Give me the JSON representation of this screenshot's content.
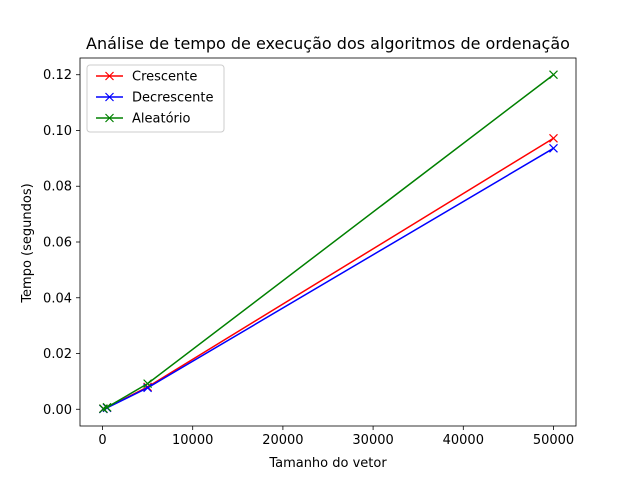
{
  "chart_data": {
    "type": "line",
    "title": "Análise de tempo de execução dos algoritmos de ordenação",
    "xlabel": "Tamanho do vetor",
    "ylabel": "Tempo (segundos)",
    "xlim": [
      -2495,
      52495
    ],
    "ylim": [
      -0.006,
      0.126
    ],
    "xticks": [
      0,
      10000,
      20000,
      30000,
      40000,
      50000
    ],
    "xtick_labels": [
      "0",
      "10000",
      "20000",
      "30000",
      "40000",
      "50000"
    ],
    "yticks": [
      0.0,
      0.02,
      0.04,
      0.06,
      0.08,
      0.1,
      0.12
    ],
    "ytick_labels": [
      "0.00",
      "0.02",
      "0.04",
      "0.06",
      "0.08",
      "0.10",
      "0.12"
    ],
    "grid": false,
    "legend_position": "upper-left",
    "marker": "x",
    "x": [
      100,
      500,
      5000,
      50000
    ],
    "series": [
      {
        "name": "Crescente",
        "color": "#ff0000",
        "values": [
          0.0002,
          0.0006,
          0.008,
          0.0972
        ]
      },
      {
        "name": "Decrescente",
        "color": "#0000ff",
        "values": [
          0.0001,
          0.0005,
          0.0077,
          0.0936
        ]
      },
      {
        "name": "Aleatório",
        "color": "#008000",
        "values": [
          0.0002,
          0.0007,
          0.0092,
          0.12
        ]
      }
    ]
  }
}
